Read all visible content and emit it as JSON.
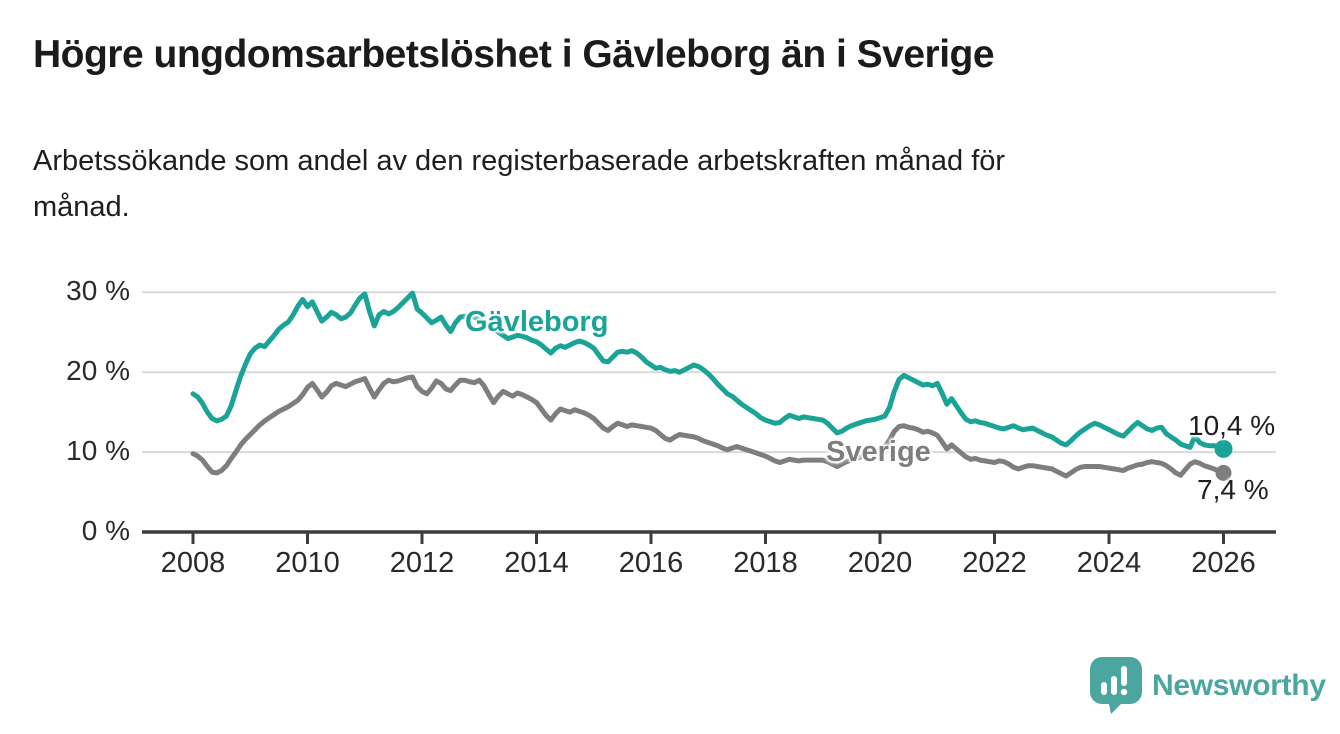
{
  "chart_data": {
    "type": "line",
    "title": "Högre ungdomsarbetslöshet i Gävleborg än i Sverige",
    "subtitle": "Arbetssökande som andel av den registerbaserade arbetskraften månad för\nmånad.",
    "unit": "%",
    "frequency": "monthly",
    "x_start": "2008-01",
    "x_end": "2026-01",
    "x_tick_labels": [
      "2008",
      "2010",
      "2012",
      "2014",
      "2016",
      "2018",
      "2020",
      "2022",
      "2024",
      "2026"
    ],
    "y_tick_labels": [
      "0 %",
      "10 %",
      "20 %",
      "30 %"
    ],
    "y_tick_values": [
      0,
      10,
      20,
      30
    ],
    "ylim": [
      0,
      31
    ],
    "grid": "horizontal",
    "legend": "inline-labels",
    "series": [
      {
        "name": "Gävleborg",
        "color": "#1aa396",
        "end_value": 10.4,
        "end_label": "10,4 %",
        "values": [
          17.3,
          16.9,
          16.1,
          15.0,
          14.2,
          13.9,
          14.1,
          14.5,
          15.8,
          17.7,
          19.5,
          21.0,
          22.3,
          23.0,
          23.4,
          23.2,
          23.9,
          24.6,
          25.4,
          25.9,
          26.3,
          27.2,
          28.3,
          29.1,
          28.2,
          28.8,
          27.6,
          26.4,
          26.9,
          27.5,
          27.2,
          26.7,
          26.9,
          27.4,
          28.4,
          29.3,
          29.8,
          27.6,
          25.8,
          27.2,
          27.6,
          27.3,
          27.6,
          28.1,
          28.7,
          29.3,
          29.9,
          27.9,
          27.4,
          26.8,
          26.2,
          26.5,
          26.9,
          25.9,
          25.1,
          26.2,
          26.9,
          27.0,
          27.1,
          26.9,
          26.6,
          26.3,
          25.9,
          25.4,
          25.0,
          24.6,
          24.2,
          24.4,
          24.6,
          24.5,
          24.3,
          24.0,
          23.8,
          23.4,
          22.9,
          22.4,
          23.0,
          23.3,
          23.1,
          23.4,
          23.7,
          23.9,
          23.7,
          23.4,
          23.0,
          22.2,
          21.4,
          21.3,
          21.9,
          22.5,
          22.6,
          22.5,
          22.7,
          22.4,
          21.9,
          21.3,
          20.9,
          20.5,
          20.6,
          20.3,
          20.1,
          20.2,
          20.0,
          20.3,
          20.6,
          20.9,
          20.7,
          20.3,
          19.8,
          19.2,
          18.5,
          17.9,
          17.3,
          17.0,
          16.5,
          16.0,
          15.6,
          15.2,
          14.8,
          14.3,
          14.0,
          13.8,
          13.6,
          13.7,
          14.2,
          14.6,
          14.4,
          14.2,
          14.4,
          14.3,
          14.2,
          14.1,
          14.0,
          13.6,
          13.0,
          12.4,
          12.6,
          13.0,
          13.3,
          13.5,
          13.7,
          13.9,
          14.0,
          14.1,
          14.3,
          14.5,
          15.6,
          17.6,
          19.1,
          19.6,
          19.3,
          19.0,
          18.7,
          18.4,
          18.5,
          18.3,
          18.6,
          17.4,
          16.0,
          16.7,
          15.8,
          14.9,
          14.1,
          13.8,
          13.9,
          13.7,
          13.6,
          13.4,
          13.2,
          13.0,
          12.9,
          13.1,
          13.3,
          13.0,
          12.8,
          12.9,
          13.0,
          12.7,
          12.4,
          12.1,
          11.9,
          11.5,
          11.1,
          10.9,
          11.4,
          12.0,
          12.5,
          12.9,
          13.3,
          13.6,
          13.4,
          13.1,
          12.8,
          12.5,
          12.2,
          12.0,
          12.6,
          13.2,
          13.7,
          13.3,
          12.9,
          12.7,
          13.0,
          13.1,
          12.3,
          11.9,
          11.5,
          11.0,
          10.8,
          10.6,
          12.0,
          11.2,
          10.9,
          10.8,
          10.8,
          10.7,
          10.4
        ]
      },
      {
        "name": "Sverige",
        "color": "#7e7e7e",
        "end_value": 7.4,
        "end_label": "7,4 %",
        "values": [
          9.8,
          9.5,
          9.0,
          8.2,
          7.5,
          7.4,
          7.7,
          8.3,
          9.2,
          10.0,
          10.9,
          11.6,
          12.2,
          12.8,
          13.4,
          13.9,
          14.3,
          14.7,
          15.1,
          15.4,
          15.7,
          16.1,
          16.5,
          17.2,
          18.1,
          18.6,
          17.8,
          16.9,
          17.5,
          18.3,
          18.6,
          18.4,
          18.2,
          18.5,
          18.8,
          19.0,
          19.2,
          18.0,
          16.9,
          17.8,
          18.6,
          19.0,
          18.8,
          18.9,
          19.1,
          19.3,
          19.4,
          18.2,
          17.6,
          17.3,
          18.0,
          18.9,
          18.6,
          17.9,
          17.7,
          18.4,
          19.0,
          19.0,
          18.8,
          18.7,
          19.0,
          18.3,
          17.2,
          16.2,
          17.0,
          17.6,
          17.3,
          17.0,
          17.4,
          17.2,
          16.9,
          16.6,
          16.2,
          15.4,
          14.6,
          14.0,
          14.8,
          15.4,
          15.2,
          15.0,
          15.3,
          15.1,
          14.9,
          14.6,
          14.2,
          13.6,
          13.0,
          12.7,
          13.2,
          13.6,
          13.4,
          13.2,
          13.4,
          13.3,
          13.2,
          13.1,
          13.0,
          12.7,
          12.2,
          11.7,
          11.5,
          11.9,
          12.2,
          12.1,
          12.0,
          11.9,
          11.7,
          11.4,
          11.2,
          11.0,
          10.8,
          10.5,
          10.3,
          10.5,
          10.7,
          10.5,
          10.3,
          10.1,
          9.9,
          9.7,
          9.5,
          9.2,
          8.9,
          8.7,
          8.9,
          9.1,
          9.0,
          8.9,
          9.0,
          9.0,
          9.0,
          9.0,
          9.0,
          8.8,
          8.5,
          8.2,
          8.5,
          8.8,
          9.0,
          9.2,
          9.4,
          9.6,
          9.8,
          10.0,
          10.3,
          10.6,
          11.5,
          12.6,
          13.2,
          13.3,
          13.1,
          13.0,
          12.8,
          12.5,
          12.6,
          12.4,
          12.1,
          11.3,
          10.4,
          10.9,
          10.4,
          9.9,
          9.4,
          9.1,
          9.2,
          9.0,
          8.9,
          8.8,
          8.7,
          8.9,
          8.8,
          8.5,
          8.1,
          7.9,
          8.1,
          8.3,
          8.3,
          8.2,
          8.1,
          8.0,
          7.9,
          7.6,
          7.3,
          7.0,
          7.4,
          7.8,
          8.1,
          8.2,
          8.2,
          8.2,
          8.2,
          8.1,
          8.0,
          7.9,
          7.8,
          7.7,
          8.0,
          8.2,
          8.4,
          8.5,
          8.7,
          8.8,
          8.7,
          8.6,
          8.3,
          7.9,
          7.4,
          7.1,
          7.8,
          8.5,
          8.8,
          8.6,
          8.3,
          8.1,
          7.9,
          7.6,
          7.4
        ]
      }
    ],
    "colors": {
      "gavleborg_teal": "#1aa396",
      "sverige_gray": "#7e7e7e",
      "gridline": "#d9d9d9",
      "axis": "#3c3c3c",
      "text": "#1b1b1b",
      "logo_teal": "#4ca6a0"
    }
  },
  "logo": {
    "text": "Newsworthy",
    "icon": "speech-bubble-bar-chart"
  }
}
